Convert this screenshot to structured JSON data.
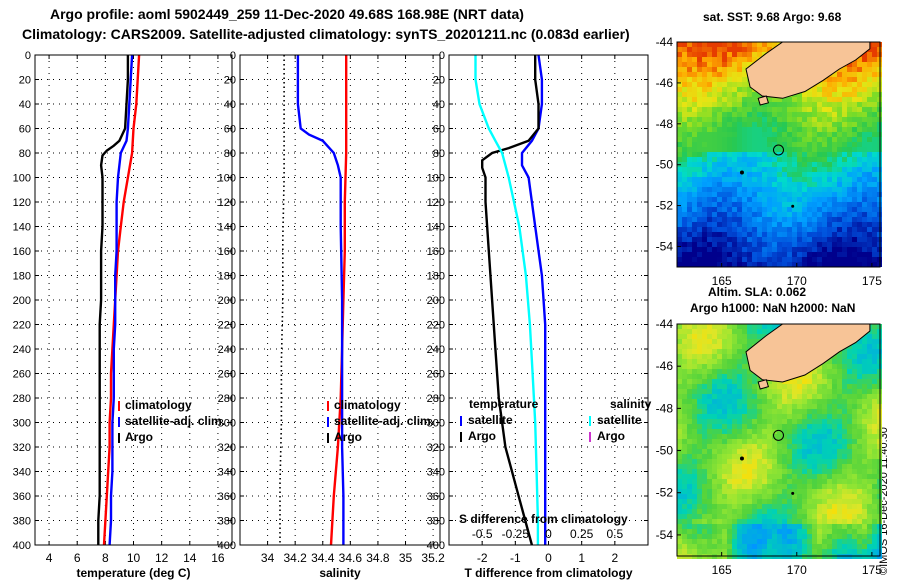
{
  "header": {
    "title1": "Argo profile: aoml 5902449_259 11-Dec-2020 49.68S 168.98E (NRT data)",
    "title2": "Climatology: CARS2009. Satellite-adjusted climatology: synTS_20201211.nc (0.083d earlier)"
  },
  "maps": {
    "sst_title": "sat. SST: 9.68 Argo: 9.68",
    "sla_title1": "Altim. SLA: 0.062",
    "sla_title2": "Argo h1000: NaN h2000: NaN",
    "lat_ticks": [
      "-44",
      "-46",
      "-48",
      "-50",
      "-52",
      "-54"
    ],
    "lon_ticks": [
      "165",
      "170",
      "175"
    ],
    "float_marker": "Argo position circle"
  },
  "credit": "©IMOS 16-Dec-2020 11:40:30",
  "colors": {
    "climatology": "#ff0000",
    "satellite": "#0000ff",
    "argo": "#000000",
    "satellite_s": "#00ffff",
    "argo_s": "#cc33cc"
  },
  "chart_data": [
    {
      "type": "line",
      "id": "temperature",
      "xlabel": "temperature (deg C)",
      "ylabel": "",
      "xlim": [
        3,
        17
      ],
      "ylim": [
        400,
        0
      ],
      "x_ticks": [
        4,
        6,
        8,
        10,
        12,
        14,
        16
      ],
      "y_ticks": [
        0,
        20,
        40,
        60,
        80,
        100,
        120,
        140,
        160,
        180,
        200,
        220,
        240,
        260,
        280,
        300,
        320,
        340,
        360,
        380,
        400
      ],
      "legend": [
        "climatology",
        "satellite-adj. clim.",
        "Argo"
      ],
      "series": [
        {
          "name": "climatology",
          "color": "#ff0000",
          "depth": [
            0,
            20,
            40,
            60,
            80,
            100,
            120,
            140,
            160,
            180,
            200,
            220,
            240,
            260,
            280,
            300,
            320,
            340,
            360,
            380,
            400
          ],
          "values": [
            10.4,
            10.3,
            10.2,
            10.0,
            9.9,
            9.6,
            9.3,
            9.1,
            8.9,
            8.8,
            8.7,
            8.6,
            8.5,
            8.4,
            8.4,
            8.3,
            8.3,
            8.2,
            8.1,
            8.0,
            7.9
          ]
        },
        {
          "name": "satellite-adj. clim.",
          "color": "#0000ff",
          "depth": [
            0,
            20,
            40,
            60,
            70,
            80,
            100,
            120,
            140,
            160,
            180,
            200,
            220,
            240,
            260,
            280,
            300,
            320,
            340,
            360,
            380,
            400
          ],
          "values": [
            9.9,
            9.8,
            9.7,
            9.6,
            9.5,
            9.1,
            8.9,
            8.8,
            8.8,
            8.8,
            8.7,
            8.7,
            8.7,
            8.6,
            8.6,
            8.6,
            8.5,
            8.5,
            8.5,
            8.4,
            8.4,
            8.3
          ]
        },
        {
          "name": "Argo",
          "color": "#000000",
          "depth": [
            0,
            20,
            40,
            60,
            70,
            74,
            78,
            82,
            90,
            100,
            120,
            140,
            160,
            180,
            200,
            220,
            240,
            260,
            280,
            300,
            320,
            340,
            360,
            380,
            400
          ],
          "values": [
            9.6,
            9.6,
            9.5,
            9.4,
            9.0,
            8.6,
            8.1,
            7.8,
            7.7,
            7.8,
            7.8,
            7.8,
            7.7,
            7.7,
            7.7,
            7.6,
            7.6,
            7.6,
            7.6,
            7.6,
            7.6,
            7.6,
            7.6,
            7.5,
            7.5
          ]
        }
      ]
    },
    {
      "type": "line",
      "id": "salinity",
      "xlabel": "salinity",
      "ylabel": "",
      "xlim": [
        33.8,
        35.25
      ],
      "ylim": [
        400,
        0
      ],
      "x_ticks": [
        34,
        34.2,
        34.4,
        34.6,
        34.8,
        35,
        35.2
      ],
      "y_ticks": [
        0,
        20,
        40,
        60,
        80,
        100,
        120,
        140,
        160,
        180,
        200,
        220,
        240,
        260,
        280,
        300,
        320,
        340,
        360,
        380,
        400
      ],
      "legend": [
        "climatology",
        "satellite-adj. clim.",
        "Argo"
      ],
      "series": [
        {
          "name": "climatology",
          "color": "#ff0000",
          "depth": [
            0,
            40,
            80,
            120,
            160,
            200,
            240,
            280,
            320,
            360,
            400
          ],
          "values": [
            34.57,
            34.57,
            34.57,
            34.56,
            34.56,
            34.55,
            34.54,
            34.53,
            34.51,
            34.48,
            34.46
          ]
        },
        {
          "name": "satellite-adj. clim.",
          "color": "#0000ff",
          "depth": [
            0,
            20,
            40,
            60,
            65,
            70,
            80,
            90,
            100,
            140,
            200,
            260,
            320,
            360,
            400
          ],
          "values": [
            34.22,
            34.22,
            34.22,
            34.24,
            34.3,
            34.4,
            34.48,
            34.51,
            34.53,
            34.53,
            34.54,
            34.54,
            34.54,
            34.55,
            34.55
          ]
        },
        {
          "name": "Argo",
          "color": "#000000",
          "depth": [
            0,
            50,
            100,
            150,
            200,
            250,
            300,
            350,
            400
          ],
          "values": [
            34.12,
            34.12,
            34.12,
            34.11,
            34.11,
            34.1,
            34.1,
            34.09,
            34.09
          ],
          "dotted": true
        }
      ]
    },
    {
      "type": "line",
      "id": "difference",
      "xlabel": "T difference from climatology",
      "x2label": "S difference from climatology",
      "xlim": [
        -3,
        3
      ],
      "ylim": [
        400,
        0
      ],
      "x_ticks": [
        -2,
        -1,
        0,
        1,
        2
      ],
      "x2_ticks": [
        "-0.5",
        "-0.25",
        "0",
        "0.25",
        "0.5"
      ],
      "y_ticks": [
        0,
        20,
        40,
        60,
        80,
        100,
        120,
        140,
        160,
        180,
        200,
        220,
        240,
        260,
        280,
        300,
        320,
        340,
        360,
        380,
        400
      ],
      "legend_titles": [
        "temperature",
        "salinity"
      ],
      "legend": [
        "satellite",
        "Argo",
        "satellite",
        "Argo"
      ],
      "series": [
        {
          "name": "T satellite",
          "color": "#0000ff",
          "depth": [
            0,
            20,
            40,
            60,
            70,
            80,
            90,
            100,
            140,
            180,
            220,
            260,
            300,
            340,
            380,
            400
          ],
          "values": [
            -0.3,
            -0.2,
            -0.2,
            -0.3,
            -0.5,
            -0.8,
            -0.8,
            -0.6,
            -0.4,
            -0.2,
            -0.1,
            -0.1,
            -0.1,
            -0.1,
            -0.1,
            -0.1
          ]
        },
        {
          "name": "T Argo",
          "color": "#000000",
          "depth": [
            0,
            20,
            40,
            60,
            70,
            76,
            80,
            86,
            92,
            100,
            120,
            160,
            200,
            240,
            280,
            320,
            360,
            400
          ],
          "values": [
            -0.4,
            -0.4,
            -0.3,
            -0.3,
            -0.6,
            -1.2,
            -1.7,
            -2.0,
            -2.0,
            -1.9,
            -1.9,
            -1.8,
            -1.7,
            -1.6,
            -1.5,
            -1.3,
            -0.9,
            -0.5
          ]
        },
        {
          "name": "S satellite",
          "color": "#00ffff",
          "depth": [
            0,
            20,
            40,
            60,
            70,
            80,
            100,
            140,
            180,
            220,
            260,
            300,
            340,
            380,
            400
          ],
          "values": [
            -0.55,
            -0.55,
            -0.52,
            -0.45,
            -0.4,
            -0.35,
            -0.3,
            -0.22,
            -0.17,
            -0.14,
            -0.12,
            -0.1,
            -0.09,
            -0.08,
            -0.08
          ]
        }
      ]
    }
  ]
}
